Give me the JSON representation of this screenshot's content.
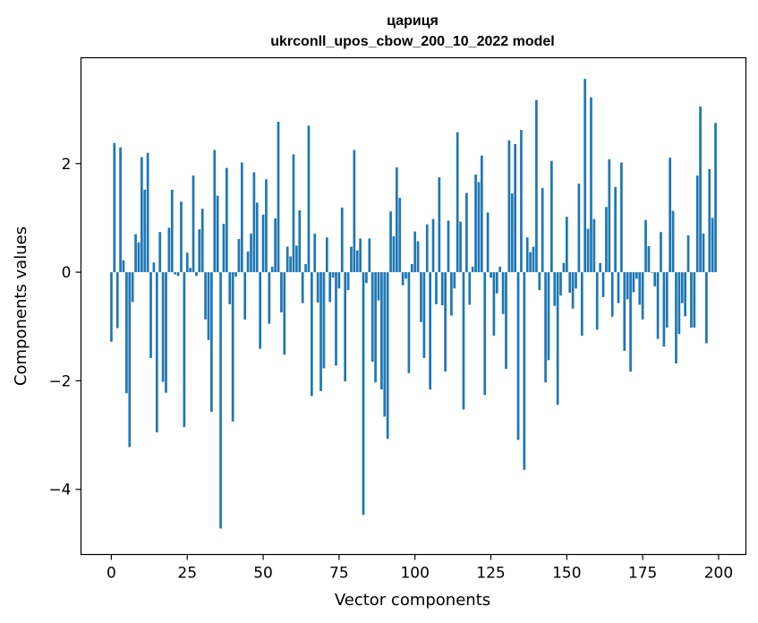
{
  "chart_data": {
    "type": "bar",
    "title": "цариця",
    "subtitle": "ukrconll_upos_cbow_200_10_2022 model",
    "xlabel": "Vector components",
    "ylabel": "Components values",
    "xlim": [
      -10,
      209
    ],
    "ylim": [
      -5.2,
      3.95
    ],
    "xticks": [
      0,
      25,
      50,
      75,
      100,
      125,
      150,
      175,
      200
    ],
    "xtick_labels": [
      "0",
      "25",
      "50",
      "75",
      "100",
      "125",
      "150",
      "175",
      "200"
    ],
    "yticks": [
      -4,
      -2,
      0,
      2
    ],
    "ytick_labels": [
      "−4",
      "−2",
      "0",
      "2"
    ],
    "grid": false,
    "bar_color": "#1f77b4",
    "x": [
      0,
      1,
      2,
      3,
      4,
      5,
      6,
      7,
      8,
      9,
      10,
      11,
      12,
      13,
      14,
      15,
      16,
      17,
      18,
      19,
      20,
      21,
      22,
      23,
      24,
      25,
      26,
      27,
      28,
      29,
      30,
      31,
      32,
      33,
      34,
      35,
      36,
      37,
      38,
      39,
      40,
      41,
      42,
      43,
      44,
      45,
      46,
      47,
      48,
      49,
      50,
      51,
      52,
      53,
      54,
      55,
      56,
      57,
      58,
      59,
      60,
      61,
      62,
      63,
      64,
      65,
      66,
      67,
      68,
      69,
      70,
      71,
      72,
      73,
      74,
      75,
      76,
      77,
      78,
      79,
      80,
      81,
      82,
      83,
      84,
      85,
      86,
      87,
      88,
      89,
      90,
      91,
      92,
      93,
      94,
      95,
      96,
      97,
      98,
      99,
      100,
      101,
      102,
      103,
      104,
      105,
      106,
      107,
      108,
      109,
      110,
      111,
      112,
      113,
      114,
      115,
      116,
      117,
      118,
      119,
      120,
      121,
      122,
      123,
      124,
      125,
      126,
      127,
      128,
      129,
      130,
      131,
      132,
      133,
      134,
      135,
      136,
      137,
      138,
      139,
      140,
      141,
      142,
      143,
      144,
      145,
      146,
      147,
      148,
      149,
      150,
      151,
      152,
      153,
      154,
      155,
      156,
      157,
      158,
      159,
      160,
      161,
      162,
      163,
      164,
      165,
      166,
      167,
      168,
      169,
      170,
      171,
      172,
      173,
      174,
      175,
      176,
      177,
      178,
      179,
      180,
      181,
      182,
      183,
      184,
      185,
      186,
      187,
      188,
      189,
      190,
      191,
      192,
      193,
      194,
      195,
      196,
      197,
      198,
      199
    ],
    "values": [
      -1.28,
      2.38,
      -1.03,
      2.3,
      0.22,
      -2.23,
      -3.22,
      -0.55,
      0.7,
      0.55,
      2.12,
      1.52,
      2.2,
      -1.58,
      0.18,
      -2.95,
      0.74,
      -2.02,
      -2.22,
      0.82,
      1.52,
      -0.04,
      -0.07,
      1.3,
      -2.85,
      0.36,
      0.08,
      1.78,
      -0.07,
      0.79,
      1.17,
      -0.87,
      -1.25,
      -2.57,
      2.25,
      1.41,
      -4.72,
      0.89,
      1.92,
      -0.59,
      -2.75,
      -0.08,
      0.61,
      2.02,
      -0.87,
      0.38,
      0.71,
      1.84,
      1.28,
      -1.41,
      1.06,
      1.71,
      -0.95,
      0.1,
      0.99,
      2.77,
      -0.74,
      -1.52,
      0.47,
      0.29,
      2.17,
      0.49,
      1.14,
      -0.57,
      0.15,
      2.7,
      -2.28,
      0.71,
      -0.56,
      -2.19,
      -1.77,
      0.64,
      -0.55,
      -0.1,
      -1.72,
      -0.3,
      1.19,
      -2.01,
      -0.33,
      0.47,
      2.25,
      0.4,
      0.62,
      -4.47,
      -0.2,
      0.62,
      -1.65,
      -2.03,
      -0.52,
      -2.16,
      -2.66,
      -3.07,
      1.12,
      0.66,
      1.93,
      1.37,
      -0.24,
      -0.12,
      -1.86,
      0.15,
      0.75,
      0.57,
      -0.92,
      -1.58,
      0.88,
      -2.16,
      0.98,
      -0.59,
      1.75,
      -0.61,
      -1.83,
      0.95,
      -0.8,
      -0.3,
      2.58,
      0.93,
      -2.53,
      1.46,
      -0.6,
      0.1,
      1.8,
      1.66,
      2.15,
      -2.26,
      1.1,
      -0.1,
      -1.17,
      -0.39,
      0.1,
      -0.77,
      -1.78,
      2.43,
      1.45,
      2.36,
      -3.09,
      2.62,
      -3.64,
      0.64,
      0.37,
      0.47,
      3.17,
      -0.33,
      1.55,
      -2.03,
      -1.62,
      2.05,
      -0.62,
      -2.44,
      -0.43,
      0.17,
      1.02,
      -0.38,
      -0.67,
      -0.3,
      1.63,
      -1.17,
      3.56,
      0.8,
      3.22,
      0.98,
      -1.06,
      0.17,
      -0.46,
      1.2,
      2.08,
      -0.82,
      1.57,
      -0.57,
      2.02,
      -1.45,
      -0.5,
      -1.83,
      -0.37,
      -0.12,
      -0.6,
      -0.87,
      0.96,
      0.48,
      -0.01,
      -0.26,
      -1.23,
      0.74,
      -1.37,
      -1.02,
      2.11,
      1.13,
      -1.68,
      -1.14,
      -0.57,
      -0.81,
      0.68,
      -1.02,
      -1.02,
      1.78,
      3.05,
      0.71,
      -1.31,
      1.9,
      1.0,
      2.75
    ]
  }
}
